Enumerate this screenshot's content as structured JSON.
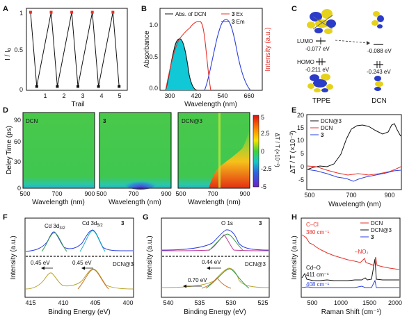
{
  "panels": {
    "A": {
      "label": "A",
      "ylabel": "I / I",
      "ylabel_sub": "0",
      "xlabel": "Trail",
      "xticks": [
        "1",
        "2",
        "3",
        "4",
        "5"
      ],
      "yticks": [
        "0",
        "0.5",
        "1"
      ],
      "series": {
        "x": [
          0.7,
          1,
          1.7,
          2,
          2.7,
          3,
          3.7,
          4,
          4.7,
          5
        ],
        "y": [
          1,
          0.05,
          1,
          0.05,
          1,
          0.05,
          1,
          0.05,
          1,
          0.05
        ]
      }
    },
    "B": {
      "label": "B",
      "ylabel": "Absorbance",
      "ylabel_right": "Intensity (a.u.)",
      "xlabel": "Wavelength (nm)",
      "xticks": [
        "300",
        "420",
        "540",
        "660"
      ],
      "yticks": [
        "0.0",
        "0.5",
        "1.0"
      ],
      "legend": {
        "abs": "Abs. of DCN",
        "ex_num": "3",
        "ex": " Ex",
        "em_num": "3",
        "em": " Em"
      }
    },
    "C": {
      "label": "C",
      "lumo": "LUMO",
      "homo": "HOMO",
      "lumo_tppe": "-0.077 eV",
      "homo_tppe": "-0.211 eV",
      "lumo_dcn": "-0.088 eV",
      "homo_dcn": "-0.243 eV",
      "name_left": "TPPE",
      "name_right": "DCN"
    },
    "D": {
      "label": "D",
      "ylabel": "Deley Time (ps)",
      "xlabel": "Wavelength (nm)",
      "sub1": "DCN",
      "sub2": "3",
      "sub3": "DCN@3",
      "xticks": [
        "500",
        "700",
        "900"
      ],
      "xticks_mid": [
        "500",
        "700",
        "900"
      ],
      "xticks_right": [
        "500",
        "700",
        "900"
      ],
      "yticks": [
        "0",
        "30",
        "60",
        "90"
      ],
      "cbar_ticks": [
        "5",
        "2.5",
        "0",
        "-2.5",
        "-5"
      ],
      "cbar_label": "ΔT / T (×10⁻³)"
    },
    "E": {
      "label": "E",
      "ylabel": "ΔT / T (×10⁻³)",
      "xlabel": "Wavelength (nm)",
      "xticks": [
        "500",
        "700",
        "900"
      ],
      "yticks": [
        "-5",
        "0",
        "5",
        "10",
        "15",
        "20"
      ],
      "legend": [
        "DCN@3",
        "DCN",
        "3"
      ]
    },
    "F": {
      "label": "F",
      "ylabel": "Intensity (a.u.)",
      "xlabel": "Binding Energy (eV)",
      "xticks": [
        "415",
        "410",
        "405",
        "400"
      ],
      "peak1": "Cd 3d",
      "peak1_sub": "3/2",
      "peak2": "Cd 3d",
      "peak2_sub": "5/2",
      "tag_top": "3",
      "tag_bottom": "DCN@3",
      "shift1": "0.45 eV",
      "shift2": "0.45 eV"
    },
    "G": {
      "label": "G",
      "ylabel": "Intensity (a.u.)",
      "xlabel": "Binding Energy (eV)",
      "xticks": [
        "540",
        "535",
        "530",
        "525"
      ],
      "peak": "O 1s",
      "tag_top": "3",
      "tag_bottom": "DCN@3",
      "shift1": "0.44 eV",
      "shift2": "0.70 eV"
    },
    "H": {
      "label": "H",
      "ylabel": "Intensity (a.u.)",
      "xlabel": "Raman Shift (cm⁻¹)",
      "xticks": [
        "500",
        "1000",
        "1500",
        "2000"
      ],
      "ann1": "C–Cl",
      "ann1b": "380 cm⁻¹",
      "ann2": "–NO₂",
      "ann3": "Cd–O",
      "ann3b": "411 cm⁻¹",
      "ann4": "408 cm⁻¹",
      "legend": [
        "DCN",
        "DCN@3",
        "3"
      ]
    }
  },
  "colors": {
    "red": "#e8302a",
    "blue": "#2b3fe0",
    "black": "#111111",
    "cyan": "#11c9d6",
    "green": "#3a9a4a",
    "olive": "#b9a32a",
    "brown": "#c8702a"
  }
}
